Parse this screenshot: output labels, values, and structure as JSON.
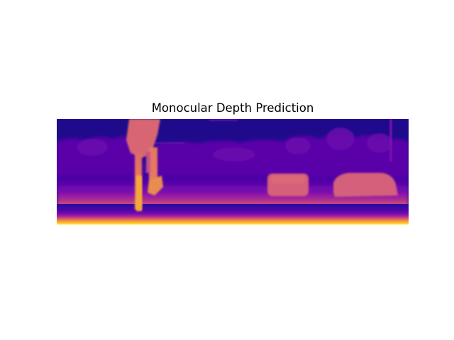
{
  "figure": {
    "title": "Monocular Depth Prediction"
  },
  "image": {
    "kind": "monocular depth prediction",
    "colormap": "plasma",
    "colormap_colors": {
      "far": "#1f0c8a",
      "mid": "#8a1fb0",
      "near_mid": "#e06a78",
      "near": "#fde825"
    }
  }
}
